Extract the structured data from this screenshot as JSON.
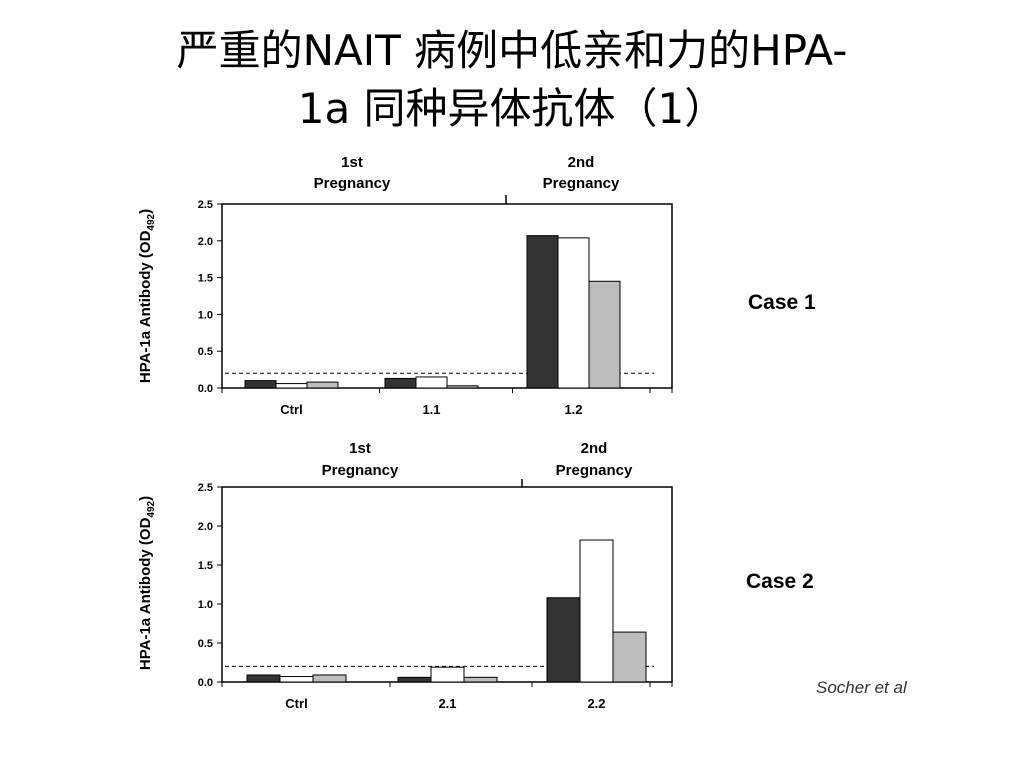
{
  "slide": {
    "title_line1": "严重的NAIT 病例中低亲和力的HPA-",
    "title_line2": "1a 同种异体抗体（1）",
    "source": "Socher et al"
  },
  "colors": {
    "series1": "#333333",
    "series2": "#ffffff",
    "series3": "#bdbdbd",
    "axis": "#000000"
  },
  "chart_data": [
    {
      "type": "bar",
      "case_label": "Case 1",
      "ylabel": "HPA-1a Antibody (OD492)",
      "ylabel_main": "HPA-1a Antibody (OD",
      "ylabel_sub": "492",
      "ylabel_close": ")",
      "ylim": [
        0,
        2.5
      ],
      "yticks": [
        "0.0",
        "0.5",
        "1.0",
        "1.5",
        "2.0",
        "2.5"
      ],
      "categories": [
        "Ctrl",
        "1.1",
        "1.2"
      ],
      "series": [
        {
          "values": [
            0.1,
            0.13,
            2.07
          ]
        },
        {
          "values": [
            0.06,
            0.15,
            2.04
          ]
        },
        {
          "values": [
            0.08,
            0.03,
            1.45
          ]
        }
      ],
      "threshold": 0.2,
      "pregnancy_labels": [
        "1st",
        "Pregnancy",
        "2nd",
        "Pregnancy"
      ]
    },
    {
      "type": "bar",
      "case_label": "Case 2",
      "ylabel": "HPA-1a Antibody (OD492)",
      "ylabel_main": "HPA-1a Antibody (OD",
      "ylabel_sub": "492",
      "ylabel_close": ")",
      "ylim": [
        0,
        2.5
      ],
      "yticks": [
        "0.0",
        "0.5",
        "1.0",
        "1.5",
        "2.0",
        "2.5"
      ],
      "categories": [
        "Ctrl",
        "2.1",
        "2.2"
      ],
      "series": [
        {
          "values": [
            0.09,
            0.06,
            1.08
          ]
        },
        {
          "values": [
            0.07,
            0.19,
            1.82
          ]
        },
        {
          "values": [
            0.09,
            0.06,
            0.64
          ]
        }
      ],
      "threshold": 0.2,
      "pregnancy_labels": [
        "1st",
        "Pregnancy",
        "2nd",
        "Pregnancy"
      ]
    }
  ]
}
